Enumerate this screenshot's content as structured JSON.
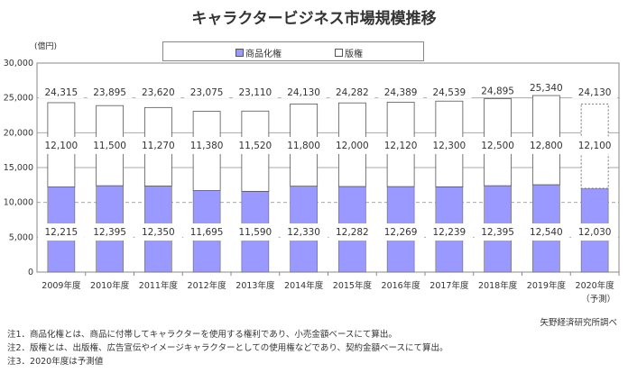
{
  "chart_data": {
    "type": "bar",
    "stacked": true,
    "title": "キャラクタービジネス市場規模推移",
    "ylabel": "(億円)",
    "ylim": [
      0,
      30000
    ],
    "yticks": [
      "0",
      "5,000",
      "10,000",
      "15,000",
      "20,000",
      "25,000",
      "30,000"
    ],
    "grid": true,
    "legend_position": "top",
    "categories": [
      "2009年度",
      "2010年度",
      "2011年度",
      "2012年度",
      "2013年度",
      "2014年度",
      "2015年度",
      "2016年度",
      "2017年度",
      "2018年度",
      "2019年度",
      "2020年度"
    ],
    "category_note": {
      "index": 11,
      "text": "（予測）"
    },
    "series": [
      {
        "name": "商品化権",
        "color": "#9999ff",
        "values": [
          12215,
          12395,
          12350,
          11695,
          11590,
          12330,
          12282,
          12269,
          12239,
          12395,
          12540,
          12030
        ],
        "labels": [
          "12,215",
          "12,395",
          "12,350",
          "11,695",
          "11,590",
          "12,330",
          "12,282",
          "12,269",
          "12,239",
          "12,395",
          "12,540",
          "12,030"
        ]
      },
      {
        "name": "版権",
        "color": "#ffffff",
        "values": [
          12100,
          11500,
          11270,
          11380,
          11520,
          11800,
          12000,
          12120,
          12300,
          12500,
          12800,
          12100
        ],
        "labels": [
          "12,100",
          "11,500",
          "11,270",
          "11,380",
          "11,520",
          "11,800",
          "12,000",
          "12,120",
          "12,300",
          "12,500",
          "12,800",
          "12,100"
        ]
      }
    ],
    "totals": [
      "24,315",
      "23,895",
      "23,620",
      "23,075",
      "23,110",
      "24,130",
      "24,282",
      "24,389",
      "24,539",
      "24,895",
      "25,340",
      "24,130"
    ]
  },
  "source": "矢野経済研究所調べ",
  "notes": [
    "注1．商品化権とは、商品に付帯してキャラクターを使用する権利であり、小売金額ベースにて算出。",
    "注2．版権とは、出版権、広告宣伝やイメージキャラクターとしての使用権などであり、契約金額ベースにて算出。",
    "注3．2020年度は予測値"
  ]
}
